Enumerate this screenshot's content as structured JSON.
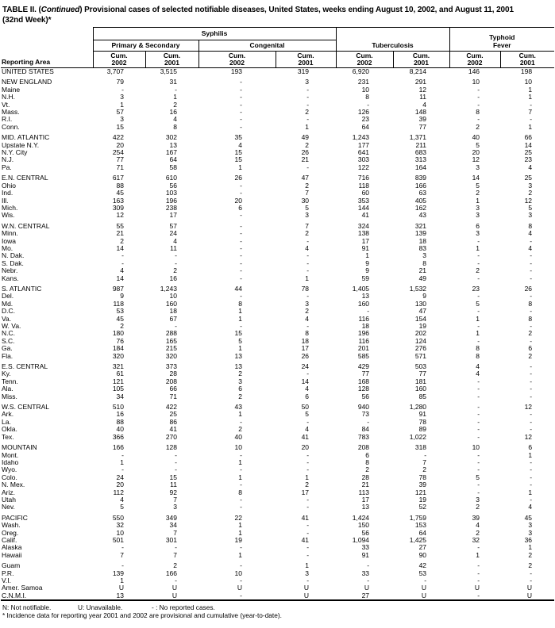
{
  "title": {
    "part1": "TABLE II. (",
    "continued": "Continued",
    "part2": ") Provisional cases of selected notifiable diseases, United States, weeks ending August 10, 2002, and August 11, 2001",
    "line2": "(32nd Week)*"
  },
  "table": {
    "reporting_area_label": "Reporting Area",
    "group_syphilis": "Syphilis",
    "group_tuberculosis": "Tuberculosis",
    "group_typhoid_l1": "Typhoid",
    "group_typhoid_l2": "Fever",
    "sub_primary": "Primary & Secondary",
    "sub_congenital": "Congenital",
    "columns": [
      {
        "cum": "Cum.",
        "year": "2002"
      },
      {
        "cum": "Cum.",
        "year": "2001"
      },
      {
        "cum": "Cum.",
        "year": "2002"
      },
      {
        "cum": "Cum.",
        "year": "2001"
      },
      {
        "cum": "Cum.",
        "year": "2002"
      },
      {
        "cum": "Cum.",
        "year": "2001"
      },
      {
        "cum": "Cum.",
        "year": "2002"
      },
      {
        "cum": "Cum.",
        "year": "2001"
      }
    ],
    "sections": [
      {
        "rows": [
          {
            "area": "UNITED STATES",
            "values": [
              "3,707",
              "3,515",
              "193",
              "319",
              "6,920",
              "8,214",
              "146",
              "198"
            ]
          }
        ]
      },
      {
        "rows": [
          {
            "area": "NEW ENGLAND",
            "values": [
              "79",
              "31",
              "-",
              "3",
              "231",
              "291",
              "10",
              "10"
            ]
          },
          {
            "area": "Maine",
            "values": [
              "-",
              "-",
              "-",
              "-",
              "10",
              "12",
              "-",
              "1"
            ]
          },
          {
            "area": "N.H.",
            "values": [
              "3",
              "1",
              "-",
              "-",
              "8",
              "11",
              "-",
              "1"
            ]
          },
          {
            "area": "Vt.",
            "values": [
              "1",
              "2",
              "-",
              "-",
              "-",
              "4",
              "-",
              "-"
            ]
          },
          {
            "area": "Mass.",
            "values": [
              "57",
              "16",
              "-",
              "2",
              "126",
              "148",
              "8",
              "7"
            ]
          },
          {
            "area": "R.I.",
            "values": [
              "3",
              "4",
              "-",
              "-",
              "23",
              "39",
              "-",
              "-"
            ]
          },
          {
            "area": "Conn.",
            "values": [
              "15",
              "8",
              "-",
              "1",
              "64",
              "77",
              "2",
              "1"
            ]
          }
        ]
      },
      {
        "rows": [
          {
            "area": "MID. ATLANTIC",
            "values": [
              "422",
              "302",
              "35",
              "49",
              "1,243",
              "1,371",
              "40",
              "66"
            ]
          },
          {
            "area": "Upstate N.Y.",
            "values": [
              "20",
              "13",
              "4",
              "2",
              "177",
              "211",
              "5",
              "14"
            ]
          },
          {
            "area": "N.Y. City",
            "values": [
              "254",
              "167",
              "15",
              "26",
              "641",
              "683",
              "20",
              "25"
            ]
          },
          {
            "area": "N.J.",
            "values": [
              "77",
              "64",
              "15",
              "21",
              "303",
              "313",
              "12",
              "23"
            ]
          },
          {
            "area": "Pa.",
            "values": [
              "71",
              "58",
              "1",
              "-",
              "122",
              "164",
              "3",
              "4"
            ]
          }
        ]
      },
      {
        "rows": [
          {
            "area": "E.N. CENTRAL",
            "values": [
              "617",
              "610",
              "26",
              "47",
              "716",
              "839",
              "14",
              "25"
            ]
          },
          {
            "area": "Ohio",
            "values": [
              "88",
              "56",
              "-",
              "2",
              "118",
              "166",
              "5",
              "3"
            ]
          },
          {
            "area": "Ind.",
            "values": [
              "45",
              "103",
              "-",
              "7",
              "60",
              "63",
              "2",
              "2"
            ]
          },
          {
            "area": "Ill.",
            "values": [
              "163",
              "196",
              "20",
              "30",
              "353",
              "405",
              "1",
              "12"
            ]
          },
          {
            "area": "Mich.",
            "values": [
              "309",
              "238",
              "6",
              "5",
              "144",
              "162",
              "3",
              "5"
            ]
          },
          {
            "area": "Wis.",
            "values": [
              "12",
              "17",
              "-",
              "3",
              "41",
              "43",
              "3",
              "3"
            ]
          }
        ]
      },
      {
        "rows": [
          {
            "area": "W.N. CENTRAL",
            "values": [
              "55",
              "57",
              "-",
              "7",
              "324",
              "321",
              "6",
              "8"
            ]
          },
          {
            "area": "Minn.",
            "values": [
              "21",
              "24",
              "-",
              "2",
              "138",
              "139",
              "3",
              "4"
            ]
          },
          {
            "area": "Iowa",
            "values": [
              "2",
              "4",
              "-",
              "-",
              "17",
              "18",
              "-",
              "-"
            ]
          },
          {
            "area": "Mo.",
            "values": [
              "14",
              "11",
              "-",
              "4",
              "91",
              "83",
              "1",
              "4"
            ]
          },
          {
            "area": "N. Dak.",
            "values": [
              "-",
              "-",
              "-",
              "-",
              "1",
              "3",
              "-",
              "-"
            ]
          },
          {
            "area": "S. Dak.",
            "values": [
              "-",
              "-",
              "-",
              "-",
              "9",
              "8",
              "-",
              "-"
            ]
          },
          {
            "area": "Nebr.",
            "values": [
              "4",
              "2",
              "-",
              "-",
              "9",
              "21",
              "2",
              "-"
            ]
          },
          {
            "area": "Kans.",
            "values": [
              "14",
              "16",
              "-",
              "1",
              "59",
              "49",
              "-",
              "-"
            ]
          }
        ]
      },
      {
        "rows": [
          {
            "area": "S. ATLANTIC",
            "values": [
              "987",
              "1,243",
              "44",
              "78",
              "1,405",
              "1,532",
              "23",
              "26"
            ]
          },
          {
            "area": "Del.",
            "values": [
              "9",
              "10",
              "-",
              "-",
              "13",
              "9",
              "-",
              "-"
            ]
          },
          {
            "area": "Md.",
            "values": [
              "118",
              "160",
              "8",
              "3",
              "160",
              "130",
              "5",
              "8"
            ]
          },
          {
            "area": "D.C.",
            "values": [
              "53",
              "18",
              "1",
              "2",
              "-",
              "47",
              "-",
              "-"
            ]
          },
          {
            "area": "Va.",
            "values": [
              "45",
              "67",
              "1",
              "4",
              "116",
              "154",
              "1",
              "8"
            ]
          },
          {
            "area": "W. Va.",
            "values": [
              "2",
              "-",
              "-",
              "-",
              "18",
              "19",
              "-",
              "-"
            ]
          },
          {
            "area": "N.C.",
            "values": [
              "180",
              "288",
              "15",
              "8",
              "196",
              "202",
              "1",
              "2"
            ]
          },
          {
            "area": "S.C.",
            "values": [
              "76",
              "165",
              "5",
              "18",
              "116",
              "124",
              "-",
              "-"
            ]
          },
          {
            "area": "Ga.",
            "values": [
              "184",
              "215",
              "1",
              "17",
              "201",
              "276",
              "8",
              "6"
            ]
          },
          {
            "area": "Fla.",
            "values": [
              "320",
              "320",
              "13",
              "26",
              "585",
              "571",
              "8",
              "2"
            ]
          }
        ]
      },
      {
        "rows": [
          {
            "area": "E.S. CENTRAL",
            "values": [
              "321",
              "373",
              "13",
              "24",
              "429",
              "503",
              "4",
              "-"
            ]
          },
          {
            "area": "Ky.",
            "values": [
              "61",
              "28",
              "2",
              "-",
              "77",
              "77",
              "4",
              "-"
            ]
          },
          {
            "area": "Tenn.",
            "values": [
              "121",
              "208",
              "3",
              "14",
              "168",
              "181",
              "-",
              "-"
            ]
          },
          {
            "area": "Ala.",
            "values": [
              "105",
              "66",
              "6",
              "4",
              "128",
              "160",
              "-",
              "-"
            ]
          },
          {
            "area": "Miss.",
            "values": [
              "34",
              "71",
              "2",
              "6",
              "56",
              "85",
              "-",
              "-"
            ]
          }
        ]
      },
      {
        "rows": [
          {
            "area": "W.S. CENTRAL",
            "values": [
              "510",
              "422",
              "43",
              "50",
              "940",
              "1,280",
              "-",
              "12"
            ]
          },
          {
            "area": "Ark.",
            "values": [
              "16",
              "25",
              "1",
              "5",
              "73",
              "91",
              "-",
              "-"
            ]
          },
          {
            "area": "La.",
            "values": [
              "88",
              "86",
              "-",
              "-",
              "-",
              "78",
              "-",
              "-"
            ]
          },
          {
            "area": "Okla.",
            "values": [
              "40",
              "41",
              "2",
              "4",
              "84",
              "89",
              "-",
              "-"
            ]
          },
          {
            "area": "Tex.",
            "values": [
              "366",
              "270",
              "40",
              "41",
              "783",
              "1,022",
              "-",
              "12"
            ]
          }
        ]
      },
      {
        "rows": [
          {
            "area": "MOUNTAIN",
            "values": [
              "166",
              "128",
              "10",
              "20",
              "208",
              "318",
              "10",
              "6"
            ]
          },
          {
            "area": "Mont.",
            "values": [
              "-",
              "-",
              "-",
              "-",
              "6",
              "-",
              "-",
              "1"
            ]
          },
          {
            "area": "Idaho",
            "values": [
              "1",
              "-",
              "1",
              "-",
              "8",
              "7",
              "-",
              "-"
            ]
          },
          {
            "area": "Wyo.",
            "values": [
              "-",
              "-",
              "-",
              "-",
              "2",
              "2",
              "-",
              "-"
            ]
          },
          {
            "area": "Colo.",
            "values": [
              "24",
              "15",
              "1",
              "1",
              "28",
              "78",
              "5",
              "-"
            ]
          },
          {
            "area": "N. Mex.",
            "values": [
              "20",
              "11",
              "-",
              "2",
              "21",
              "39",
              "-",
              "-"
            ]
          },
          {
            "area": "Ariz.",
            "values": [
              "112",
              "92",
              "8",
              "17",
              "113",
              "121",
              "-",
              "1"
            ]
          },
          {
            "area": "Utah",
            "values": [
              "4",
              "7",
              "-",
              "-",
              "17",
              "19",
              "3",
              "-"
            ]
          },
          {
            "area": "Nev.",
            "values": [
              "5",
              "3",
              "-",
              "-",
              "13",
              "52",
              "2",
              "4"
            ]
          }
        ]
      },
      {
        "rows": [
          {
            "area": "PACIFIC",
            "values": [
              "550",
              "349",
              "22",
              "41",
              "1,424",
              "1,759",
              "39",
              "45"
            ]
          },
          {
            "area": "Wash.",
            "values": [
              "32",
              "34",
              "1",
              "-",
              "150",
              "153",
              "4",
              "3"
            ]
          },
          {
            "area": "Oreg.",
            "values": [
              "10",
              "7",
              "1",
              "-",
              "56",
              "64",
              "2",
              "3"
            ]
          },
          {
            "area": "Calif.",
            "values": [
              "501",
              "301",
              "19",
              "41",
              "1,094",
              "1,425",
              "32",
              "36"
            ]
          },
          {
            "area": "Alaska",
            "values": [
              "-",
              "-",
              "-",
              "-",
              "33",
              "27",
              "-",
              "1"
            ]
          },
          {
            "area": "Hawaii",
            "values": [
              "7",
              "7",
              "1",
              "-",
              "91",
              "90",
              "1",
              "2"
            ]
          }
        ]
      },
      {
        "rows": [
          {
            "area": "Guam",
            "values": [
              "-",
              "2",
              "-",
              "1",
              "-",
              "42",
              "-",
              "2"
            ]
          },
          {
            "area": "P.R.",
            "values": [
              "139",
              "166",
              "10",
              "3",
              "33",
              "53",
              "-",
              "-"
            ]
          },
          {
            "area": "V.I.",
            "values": [
              "1",
              "-",
              "-",
              "-",
              "-",
              "-",
              "-",
              "-"
            ]
          },
          {
            "area": "Amer. Samoa",
            "values": [
              "U",
              "U",
              "U",
              "U",
              "U",
              "U",
              "U",
              "U"
            ]
          },
          {
            "area": "C.N.M.I.",
            "values": [
              "13",
              "U",
              "-",
              "U",
              "27",
              "U",
              "-",
              "U"
            ]
          }
        ]
      }
    ]
  },
  "footnotes": {
    "not_notifiable": "N: Not notifiable.",
    "unavailable": "U: Unavailable.",
    "no_reported": "- : No reported cases.",
    "incidence": "* Incidence data for reporting year 2001 and 2002 are provisional and cumulative (year-to-date)."
  }
}
